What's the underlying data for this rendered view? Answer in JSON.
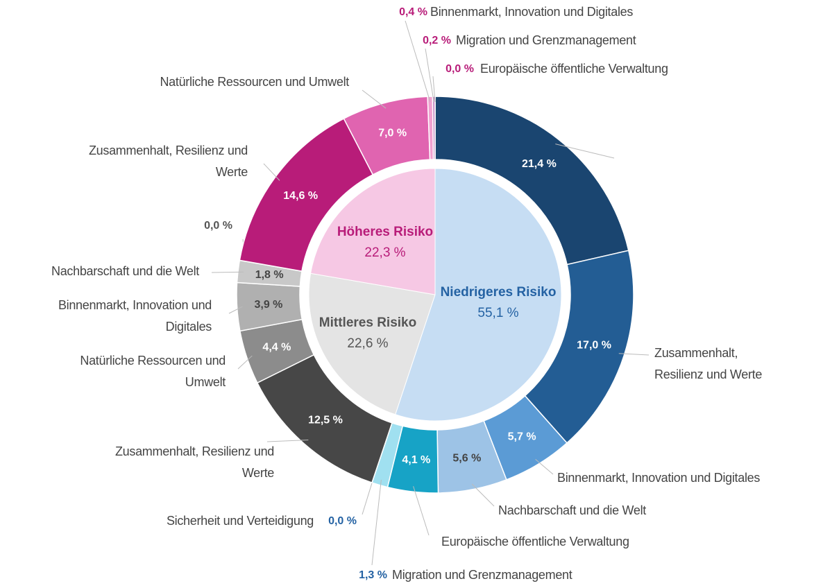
{
  "chart_data": {
    "type": "sunburst",
    "groups": [
      {
        "name": "Niedrigeres Risiko",
        "value": 55.1,
        "value_label": "55,1 %",
        "color": "#c6ddf3",
        "text_color": "#2462a3",
        "segment_names": [
          null,
          "Zusammenhalt, Resilienz und Werte",
          "Binnenmarkt, Innovation und Digitales",
          "Nachbarschaft und die Welt",
          "Europäische öffentliche Verwaltung",
          "Migration und Grenzmanagement",
          "Sicherheit und Verteidigung"
        ],
        "values": [
          21.4,
          17.0,
          5.7,
          5.6,
          4.1,
          1.3,
          0.0
        ],
        "value_labels": [
          "21,4 %",
          "17,0 %",
          "5,7 %",
          "5,6 %",
          "4,1 %",
          "1,3 %",
          "0,0 %"
        ],
        "colors": [
          "#1a4570",
          "#235d94",
          "#5b9bd5",
          "#9dc3e6",
          "#17a3c6",
          "#a0e0f0",
          "#8ed6ea"
        ]
      },
      {
        "name": "Mittleres Risiko",
        "value": 22.6,
        "value_label": "22,6 %",
        "color": "#e4e4e4",
        "text_color": "#555555",
        "segment_names": [
          "Zusammenhalt, Resilienz und Werte",
          "Natürliche Ressourcen und Umwelt",
          "Binnenmarkt, Innovation und Digitales",
          "Nachbarschaft und die Welt",
          null
        ],
        "values": [
          12.5,
          4.4,
          3.9,
          1.8,
          0.0
        ],
        "value_labels": [
          "12,5 %",
          "4,4 %",
          "3,9 %",
          "1,8 %",
          "0,0 %"
        ],
        "colors": [
          "#474747",
          "#8c8c8c",
          "#b0b0b0",
          "#c8c8c8",
          "#d8d8d8"
        ]
      },
      {
        "name": "Höheres Risiko",
        "value": 22.3,
        "value_label": "22,3 %",
        "color": "#f6c8e4",
        "text_color": "#b81c79",
        "segment_names": [
          "Zusammenhalt, Resilienz und Werte",
          "Natürliche Ressourcen und Umwelt",
          "Binnenmarkt, Innovation und Digitales",
          "Migration und Grenzmanagement",
          "Europäische öffentliche Verwaltung"
        ],
        "values": [
          14.6,
          7.0,
          0.4,
          0.2,
          0.0
        ],
        "value_labels": [
          "14,6 %",
          "7,0 %",
          "0,4 %",
          "0,2 %",
          "0,0 %"
        ],
        "colors": [
          "#b81c79",
          "#e064b0",
          "#f0a0d0",
          "#c080c0",
          "#9070b0"
        ]
      }
    ]
  }
}
